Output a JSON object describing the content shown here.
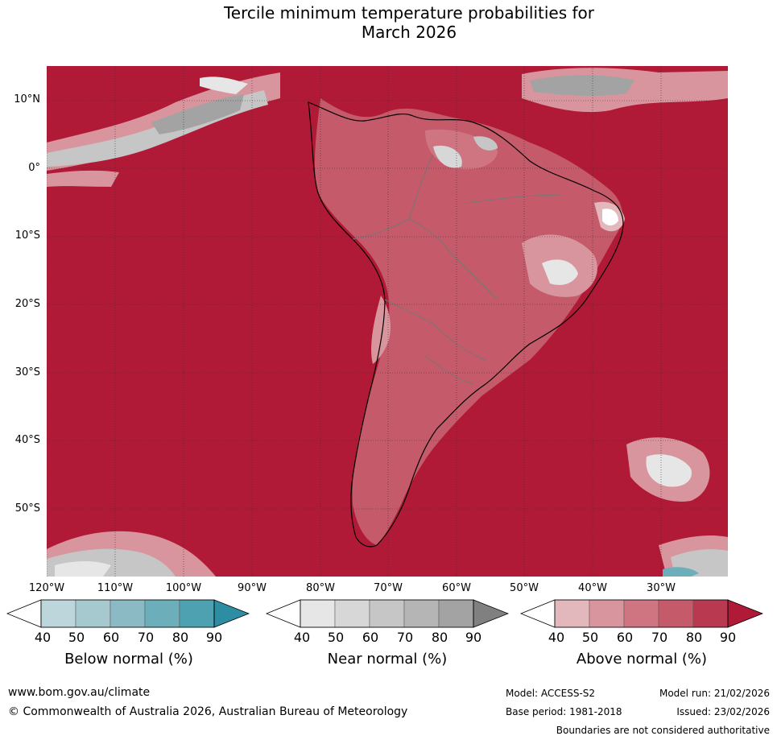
{
  "title_line1": "Tercile minimum temperature probabilities for",
  "title_line2": "March 2026",
  "map": {
    "region": "South America and surrounding oceans",
    "background_class": "above-normal-90",
    "lat_labels": [
      "10°N",
      "0°",
      "10°S",
      "20°S",
      "30°S",
      "40°S",
      "50°S"
    ],
    "lon_labels": [
      "120°W",
      "110°W",
      "100°W",
      "90°W",
      "80°W",
      "70°W",
      "60°W",
      "50°W",
      "40°W",
      "30°W"
    ],
    "colors": {
      "ocean_dominant": "#b01a37",
      "land_above": "#c83a54",
      "gridline": "#333333",
      "coastline": "#000000",
      "border": "#777777"
    }
  },
  "colorbars": [
    {
      "title": "Below normal (%)",
      "ticks": [
        "40",
        "50",
        "60",
        "70",
        "80",
        "90"
      ],
      "colors": [
        "#ffffff",
        "#bcd6db",
        "#a6c9d0",
        "#8bbac4",
        "#6daebb",
        "#4ea1b1",
        "#2d8ea3"
      ]
    },
    {
      "title": "Near normal (%)",
      "ticks": [
        "40",
        "50",
        "60",
        "70",
        "80",
        "90"
      ],
      "colors": [
        "#ffffff",
        "#e6e6e6",
        "#d7d7d7",
        "#c6c6c6",
        "#b5b5b5",
        "#a3a3a3",
        "#808080"
      ]
    },
    {
      "title": "Above normal (%)",
      "ticks": [
        "40",
        "50",
        "60",
        "70",
        "80",
        "90"
      ],
      "colors": [
        "#ffffff",
        "#e3b8bd",
        "#d9959d",
        "#ce7581",
        "#c45a6a",
        "#b93a50",
        "#b01a37"
      ]
    }
  ],
  "footer": {
    "url": "www.bom.gov.au/climate",
    "copyright": "© Commonwealth of Australia 2026, Australian Bureau of Meteorology",
    "model": "Model: ACCESS-S2",
    "model_run": "Model run: 21/02/2026",
    "base_period": "Base period: 1981-2018",
    "issued": "Issued: 23/02/2026",
    "disclaimer": "Boundaries are not considered authoritative"
  }
}
